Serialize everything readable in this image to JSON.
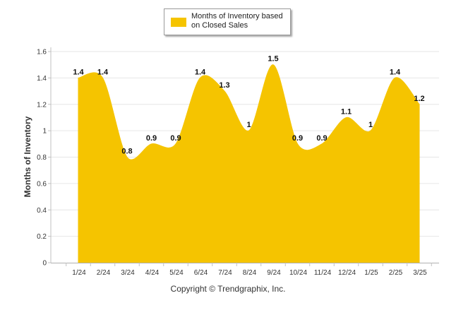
{
  "chart_data": {
    "type": "area",
    "categories": [
      "1/24",
      "2/24",
      "3/24",
      "4/24",
      "5/24",
      "6/24",
      "7/24",
      "8/24",
      "9/24",
      "10/24",
      "11/24",
      "12/24",
      "1/25",
      "2/25",
      "3/25"
    ],
    "series": [
      {
        "name": "Months of Inventory based on Closed Sales",
        "values": [
          1.4,
          1.4,
          0.8,
          0.9,
          0.9,
          1.4,
          1.3,
          1,
          1.5,
          0.9,
          0.9,
          1.1,
          1,
          1.4,
          1.2
        ],
        "labels": [
          "1.4",
          "1.4",
          "0.8",
          "0.9",
          "0.9",
          "1.4",
          "1.3",
          "1",
          "1.5",
          "0.9",
          "0.9",
          "1.1",
          "1",
          "1.4",
          "1.2"
        ]
      }
    ],
    "ylabel": "Months of Inventory",
    "xlabel": "",
    "ylim": [
      0,
      1.6
    ],
    "yticks": [
      "0",
      "0.2",
      "0.4",
      "0.6",
      "0.8",
      "1",
      "1.2",
      "1.4",
      "1.6"
    ],
    "grid": true,
    "legend": "top-center",
    "color": "#F5C400"
  },
  "footer": {
    "copyright": "Copyright © Trendgraphix, Inc."
  }
}
